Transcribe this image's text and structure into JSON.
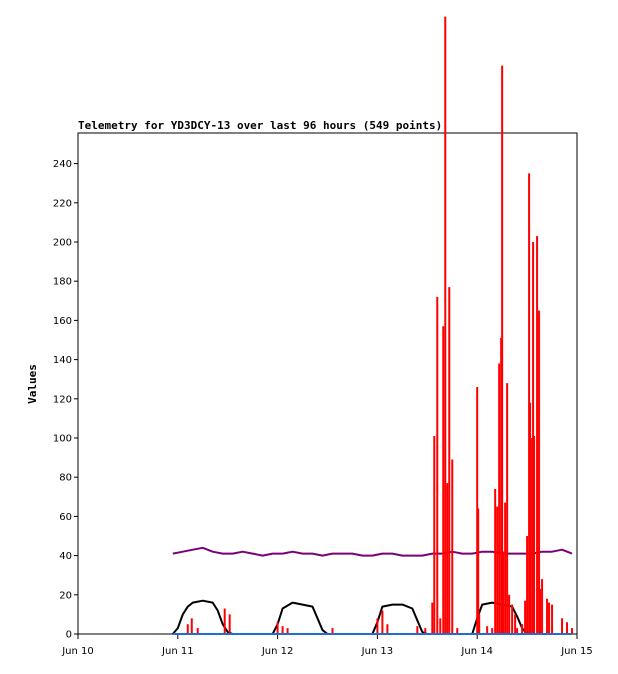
{
  "chart_data": {
    "type": "line",
    "title": "Telemetry for YD3DCY-13 over last 96 hours (549 points)",
    "xlabel": "",
    "ylabel": "Values",
    "x_ticks": [
      "Jun 10",
      "Jun 11",
      "Jun 12",
      "Jun 13",
      "Jun 14",
      "Jun 15"
    ],
    "xlim_days": [
      0,
      5
    ],
    "ylim": [
      0,
      255
    ],
    "y_ticks": [
      0,
      20,
      40,
      60,
      80,
      100,
      120,
      140,
      160,
      180,
      200,
      220,
      240
    ],
    "grid": false,
    "colors": {
      "purple": "#7a007a",
      "black": "#000000",
      "red": "#ff0000",
      "blue": "#1f6fd0"
    },
    "series": [
      {
        "color": "#7a007a",
        "style": "line",
        "x": [
          0.95,
          1.05,
          1.15,
          1.25,
          1.35,
          1.45,
          1.55,
          1.65,
          1.75,
          1.85,
          1.95,
          2.05,
          2.15,
          2.25,
          2.35,
          2.45,
          2.55,
          2.65,
          2.75,
          2.85,
          2.95,
          3.05,
          3.15,
          3.25,
          3.35,
          3.45,
          3.55,
          3.65,
          3.75,
          3.85,
          3.95,
          4.05,
          4.15,
          4.25,
          4.35,
          4.45,
          4.55,
          4.65,
          4.75,
          4.85,
          4.95
        ],
        "y": [
          41,
          42,
          43,
          44,
          42,
          41,
          41,
          42,
          41,
          40,
          41,
          41,
          42,
          41,
          41,
          40,
          41,
          41,
          41,
          40,
          40,
          41,
          41,
          40,
          40,
          40,
          41,
          41,
          42,
          41,
          41,
          42,
          42,
          41,
          41,
          41,
          41,
          42,
          42,
          43,
          41
        ]
      },
      {
        "color": "#000000",
        "style": "line",
        "x": [
          0.95,
          1.0,
          1.05,
          1.1,
          1.15,
          1.25,
          1.35,
          1.4,
          1.45,
          1.5,
          1.55,
          1.95,
          2.0,
          2.05,
          2.15,
          2.25,
          2.35,
          2.4,
          2.45,
          2.5,
          2.95,
          3.0,
          3.05,
          3.15,
          3.25,
          3.35,
          3.4,
          3.45,
          3.5,
          3.95,
          4.0,
          4.05,
          4.15,
          4.25,
          4.35,
          4.4,
          4.45,
          4.5,
          4.95
        ],
        "y": [
          0,
          3,
          10,
          14,
          16,
          17,
          16,
          12,
          5,
          1,
          0,
          0,
          5,
          13,
          16,
          15,
          14,
          8,
          2,
          0,
          0,
          6,
          14,
          15,
          15,
          13,
          7,
          1,
          0,
          0,
          8,
          15,
          16,
          15,
          14,
          9,
          3,
          0,
          0
        ]
      },
      {
        "color": "#ff0000",
        "style": "spikes",
        "x": [
          1.1,
          1.14,
          1.2,
          1.47,
          1.52,
          2.0,
          2.05,
          2.1,
          2.55,
          3.0,
          3.05,
          3.1,
          3.4,
          3.48,
          3.55,
          3.57,
          3.6,
          3.63,
          3.66,
          3.68,
          3.7,
          3.72,
          3.75,
          3.8,
          4.0,
          4.01,
          4.02,
          4.1,
          4.15,
          4.18,
          4.2,
          4.22,
          4.24,
          4.25,
          4.26,
          4.28,
          4.3,
          4.32,
          4.35,
          4.38,
          4.4,
          4.45,
          4.48,
          4.5,
          4.52,
          4.53,
          4.55,
          4.56,
          4.57,
          4.6,
          4.62,
          4.63,
          4.65,
          4.7,
          4.72,
          4.75,
          4.85,
          4.9,
          4.95
        ],
        "y": [
          5,
          8,
          3,
          13,
          10,
          6,
          4,
          3,
          3,
          8,
          12,
          5,
          4,
          3,
          16,
          101,
          172,
          8,
          157,
          315,
          77,
          177,
          89,
          3,
          126,
          64,
          10,
          4,
          3,
          74,
          65,
          138,
          151,
          290,
          42,
          67,
          128,
          20,
          15,
          10,
          3,
          5,
          17,
          50,
          235,
          118,
          100,
          200,
          101,
          203,
          165,
          23,
          28,
          18,
          16,
          15,
          8,
          6,
          3
        ]
      },
      {
        "color": "#1f6fd0",
        "style": "line",
        "x": [
          0.95,
          4.95
        ],
        "y": [
          0,
          0
        ]
      }
    ]
  }
}
